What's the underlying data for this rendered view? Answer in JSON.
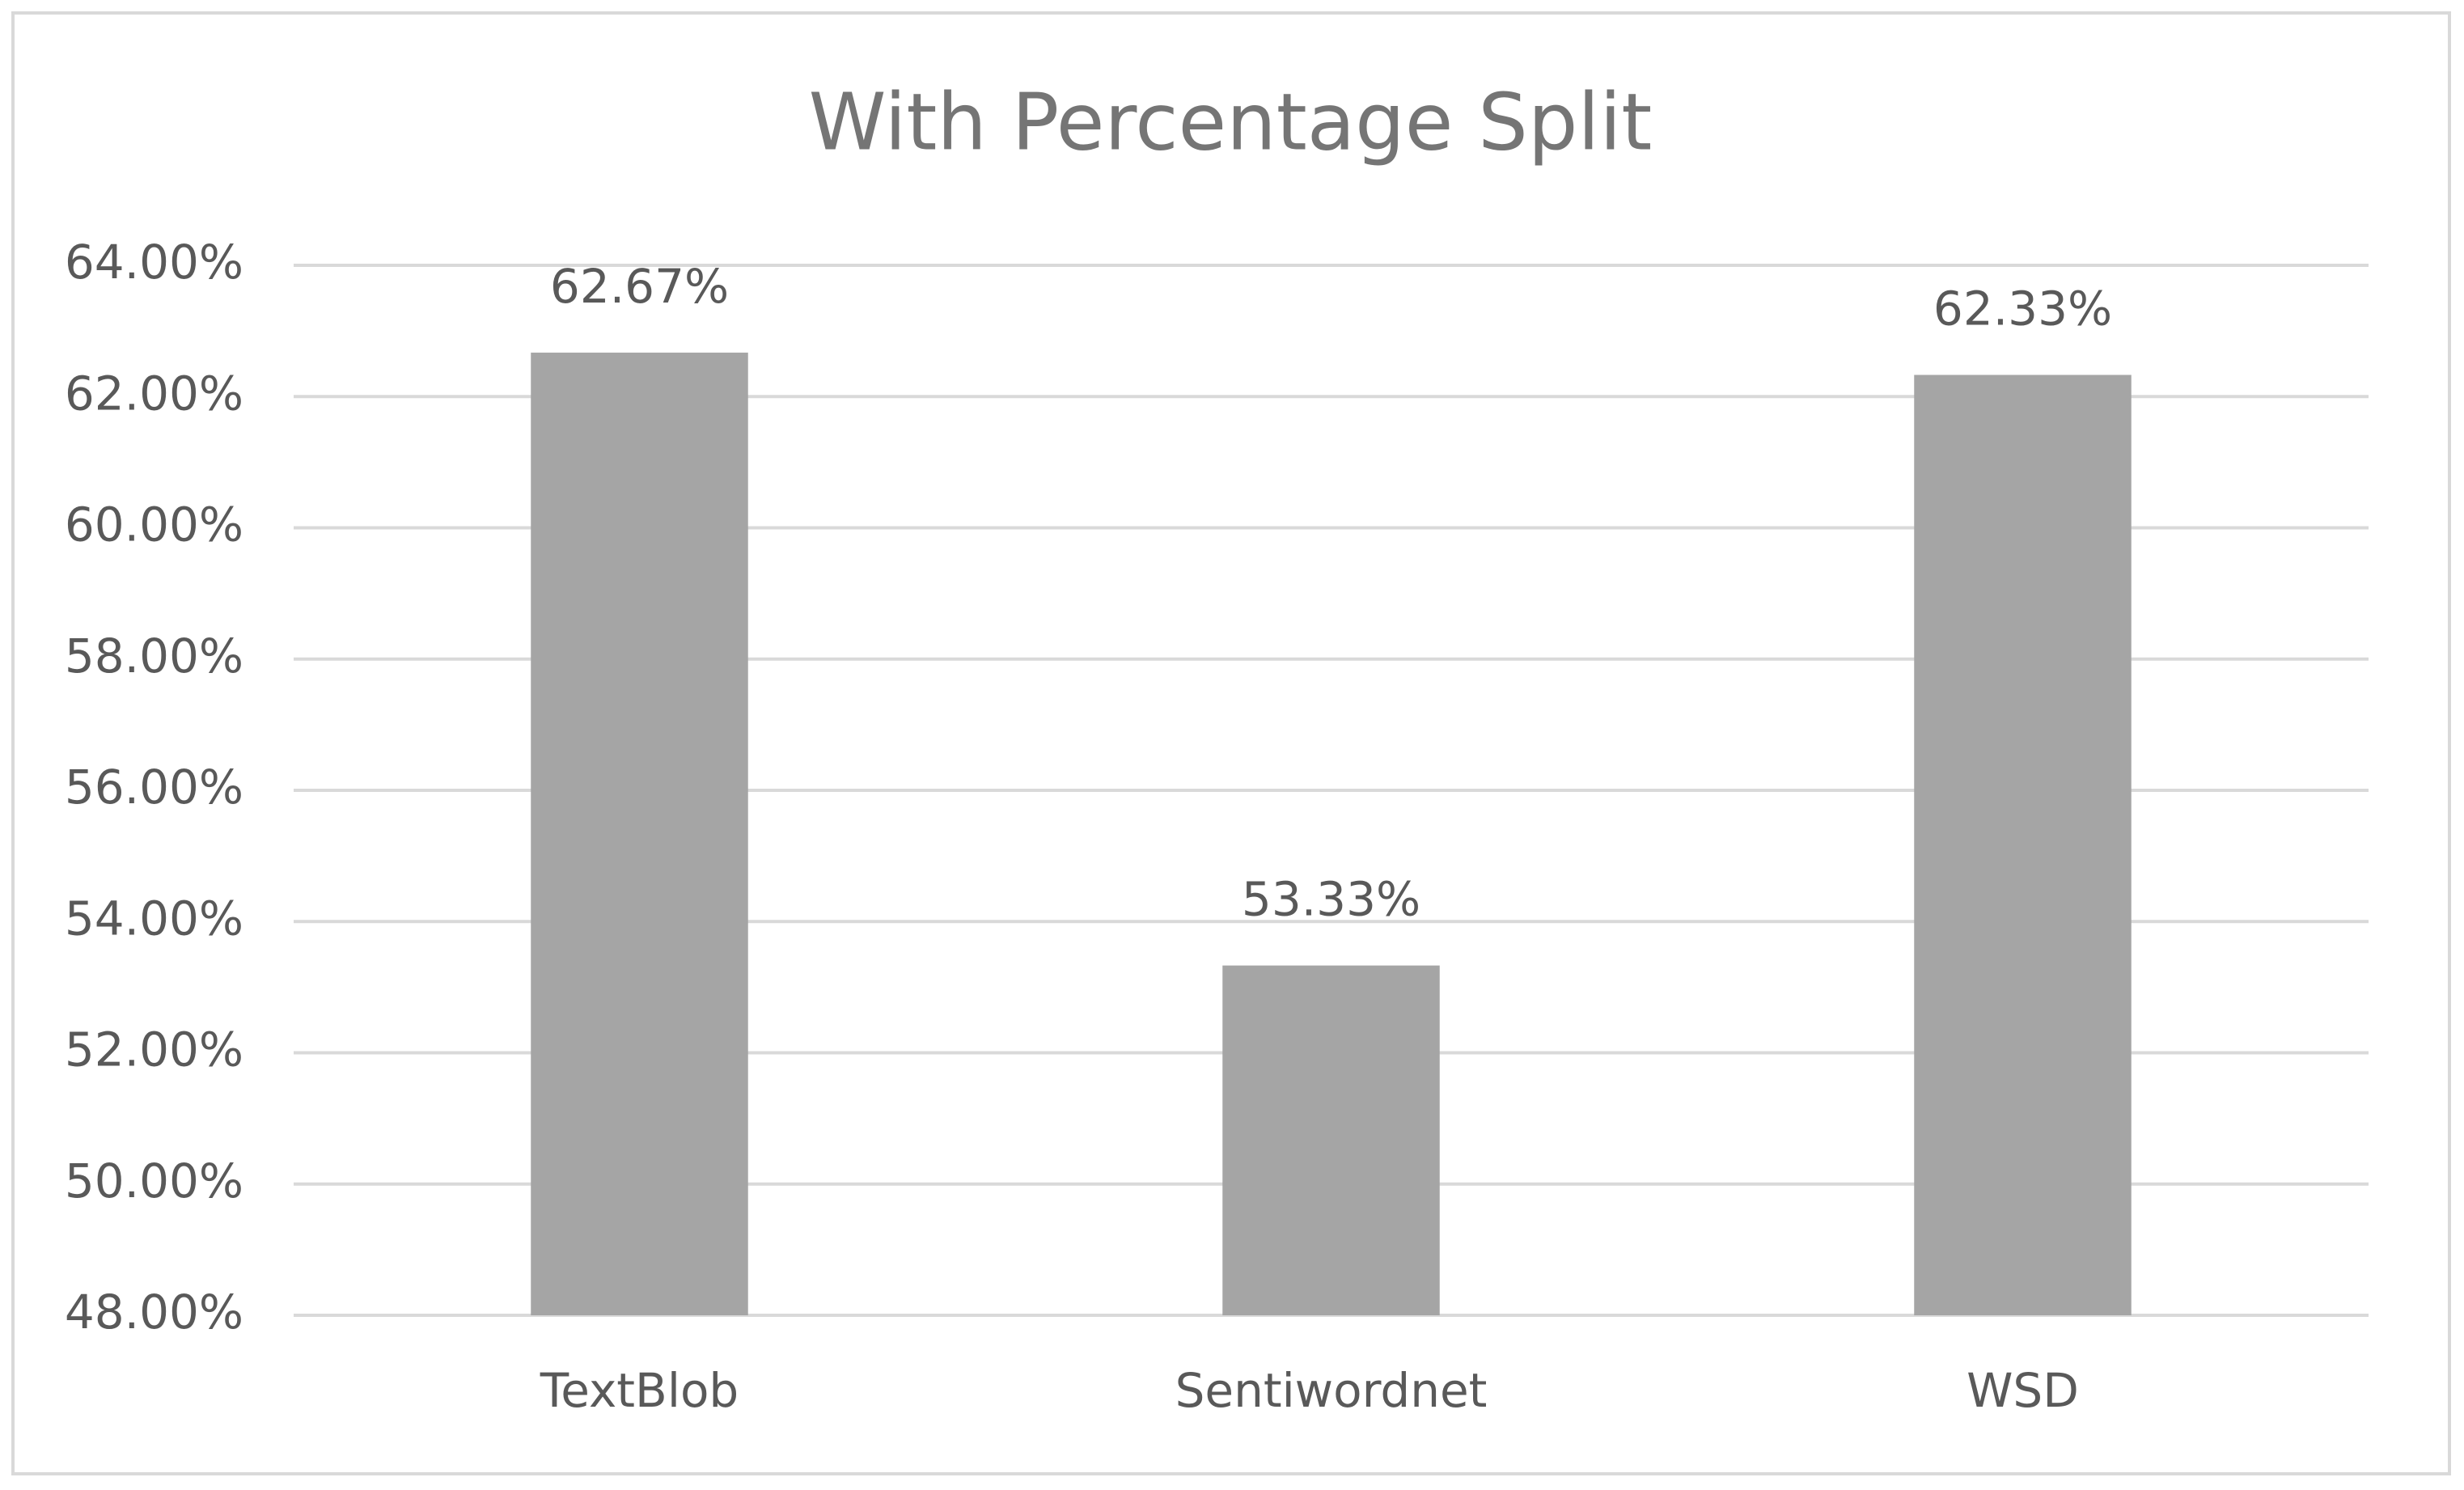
{
  "chart_data": {
    "type": "bar",
    "title": "With Percentage Split",
    "categories": [
      "TextBlob",
      "Sentiwordnet",
      "WSD"
    ],
    "values": [
      62.67,
      53.33,
      62.33
    ],
    "value_labels": [
      "62.67%",
      "53.33%",
      "62.33%"
    ],
    "color": "#a5a5a5",
    "ylim": [
      48,
      64
    ],
    "yticks": [
      {
        "value": 48,
        "label": "48.00%"
      },
      {
        "value": 50,
        "label": "50.00%"
      },
      {
        "value": 52,
        "label": "52.00%"
      },
      {
        "value": 54,
        "label": "54.00%"
      },
      {
        "value": 56,
        "label": "56.00%"
      },
      {
        "value": 58,
        "label": "58.00%"
      },
      {
        "value": 60,
        "label": "60.00%"
      },
      {
        "value": 62,
        "label": "62.00%"
      },
      {
        "value": 64,
        "label": "64.00%"
      }
    ],
    "grid": true
  }
}
